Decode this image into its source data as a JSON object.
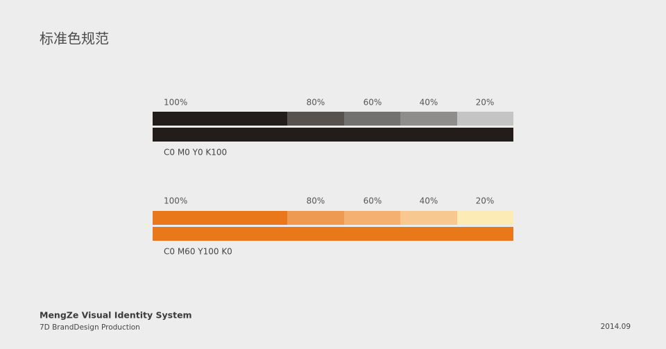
{
  "header": {
    "title": "标准色规范"
  },
  "swatches": [
    {
      "tints": [
        "100%",
        "80%",
        "60%",
        "40%",
        "20%"
      ],
      "spec": "C0 M0 Y0 K100"
    },
    {
      "tints": [
        "100%",
        "80%",
        "60%",
        "40%",
        "20%"
      ],
      "spec": "C0 M60 Y100 K0"
    }
  ],
  "footer": {
    "brand": "MengZe Visual Identity System",
    "producer": "7D BrandDesign Production",
    "date": "2014.09"
  }
}
